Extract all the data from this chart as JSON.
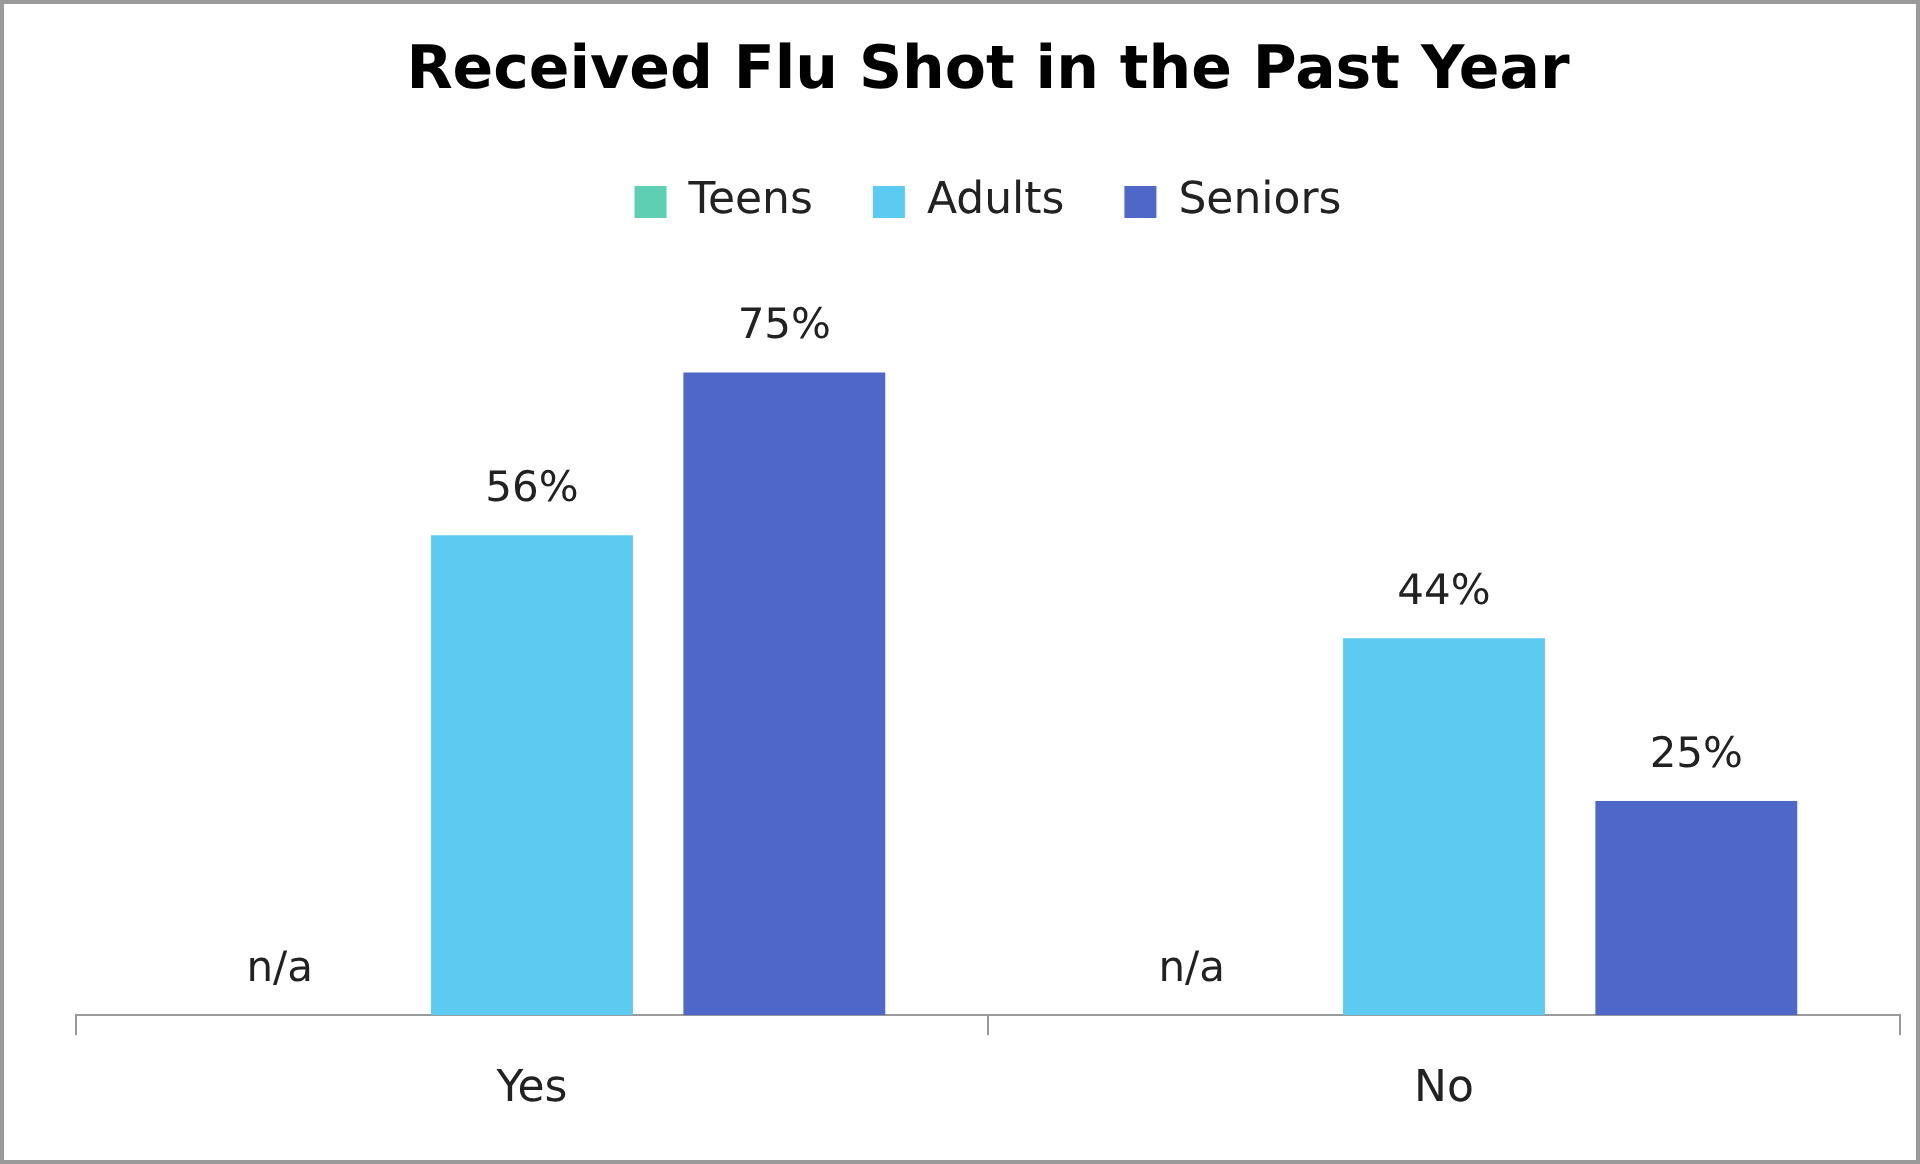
{
  "chart_data": {
    "type": "bar",
    "title": "Received Flu Shot in the Past Year",
    "categories": [
      "Yes",
      "No"
    ],
    "series": [
      {
        "name": "Teens",
        "color": "#5ecfb2",
        "values": [
          null,
          null
        ],
        "value_labels": [
          "n/a",
          "n/a"
        ]
      },
      {
        "name": "Adults",
        "color": "#5bcbf2",
        "values": [
          56,
          44
        ],
        "value_labels": [
          "56%",
          "44%"
        ]
      },
      {
        "name": "Seniors",
        "color": "#4f67c9",
        "values": [
          75,
          25
        ],
        "value_labels": [
          "75%",
          "25%"
        ]
      }
    ],
    "legend": "top",
    "grid": false
  }
}
